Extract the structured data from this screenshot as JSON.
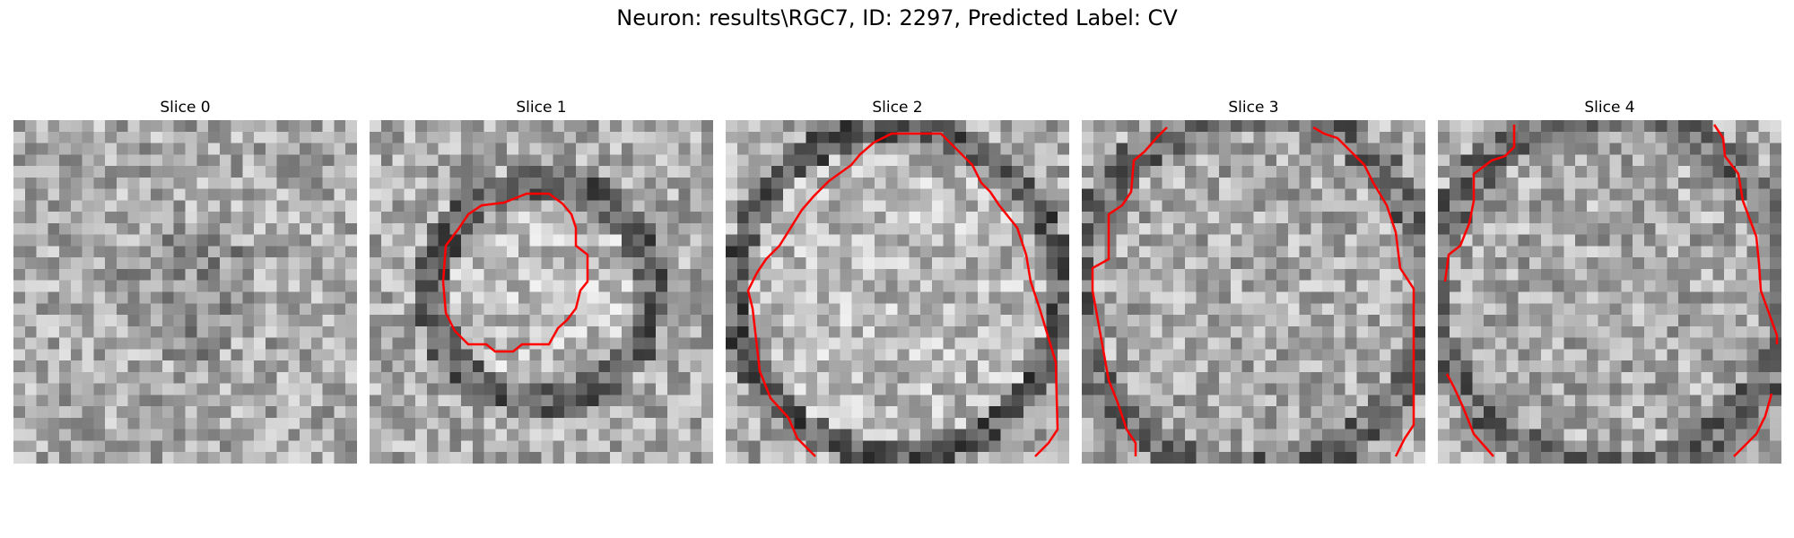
{
  "figure": {
    "title": "Neuron: results\\RGC7, ID: 2297, Predicted Label: CV"
  },
  "colors": {
    "contour": "#ff0000",
    "background": "#ffffff"
  },
  "image_style": "grayscale microscopy patch, approx 30x30 pixels",
  "panels": [
    {
      "title": "Slice 0",
      "contour": "none"
    },
    {
      "title": "Slice 1",
      "contour": "closed outline around central cell"
    },
    {
      "title": "Slice 2",
      "contour": "large arc around cell body"
    },
    {
      "title": "Slice 3",
      "contour": "two partial arcs at left and right"
    },
    {
      "title": "Slice 4",
      "contour": "partial arcs at left and right edges"
    }
  ]
}
